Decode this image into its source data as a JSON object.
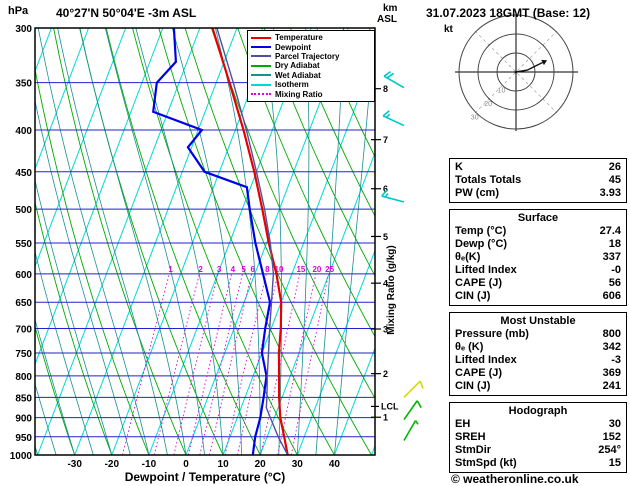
{
  "header": {
    "station": "40°27'N 50°04'E -3m ASL",
    "datetime": "31.07.2023 18GMT (Base: 12)",
    "pressure_unit": "hPa",
    "altitude_unit_top": "km",
    "altitude_unit_bottom": "ASL"
  },
  "legend": [
    {
      "label": "Temperature",
      "color": "#e60000",
      "dash": "solid"
    },
    {
      "label": "Dewpoint",
      "color": "#0000e6",
      "dash": "solid"
    },
    {
      "label": "Parcel Trajectory",
      "color": "#5050a0",
      "dash": "solid"
    },
    {
      "label": "Dry Adiabat",
      "color": "#00aa00",
      "dash": "solid"
    },
    {
      "label": "Wet Adiabat",
      "color": "#1a9090",
      "dash": "solid"
    },
    {
      "label": "Isotherm",
      "color": "#00d8d8",
      "dash": "solid"
    },
    {
      "label": "Mixing Ratio",
      "color": "#dd00dd",
      "dash": "dotted"
    }
  ],
  "axes": {
    "pressure_ticks": [
      300,
      350,
      400,
      450,
      500,
      550,
      600,
      650,
      700,
      750,
      800,
      850,
      900,
      950,
      1000
    ],
    "temp_ticks": [
      -30,
      -20,
      -10,
      0,
      10,
      20,
      30,
      40
    ],
    "xlabel": "Dewpoint / Temperature (°C)",
    "km_ticks": [
      {
        "label": "1",
        "pressure": 899
      },
      {
        "label": "2",
        "pressure": 795
      },
      {
        "label": "3",
        "pressure": 701
      },
      {
        "label": "4",
        "pressure": 616
      },
      {
        "label": "5",
        "pressure": 540
      },
      {
        "label": "6",
        "pressure": 472
      },
      {
        "label": "7",
        "pressure": 411
      },
      {
        "label": "8",
        "pressure": 356
      }
    ],
    "lcl": {
      "label": "LCL",
      "pressure": 872
    },
    "mixing_axis_label": "Mixing Ratio (g/kg)",
    "mixing_values": [
      1,
      2,
      3,
      4,
      5,
      6,
      8,
      10,
      15,
      20,
      25
    ]
  },
  "grid_colors": {
    "isobar": "#2222cc",
    "isotherm": "#00d8d8",
    "dry_adiabat": "#00aa00",
    "wet_adiabat": "#1a9090",
    "mixing_ratio": "#dd00dd"
  },
  "chart_data": {
    "type": "line",
    "title": "Skew-T log-P sounding",
    "xlabel": "Dewpoint / Temperature (°C)",
    "ylabel": "hPa",
    "x_range": [
      -40,
      45
    ],
    "pressure_range": [
      300,
      1000
    ],
    "series": [
      {
        "name": "Temperature",
        "color": "#e60000",
        "width": 2.2,
        "points": [
          [
            1000,
            27.4
          ],
          [
            950,
            24.6
          ],
          [
            900,
            21.6
          ],
          [
            850,
            19.2
          ],
          [
            800,
            17.0
          ],
          [
            750,
            14.6
          ],
          [
            700,
            12.6
          ],
          [
            650,
            10.0
          ],
          [
            600,
            5.8
          ],
          [
            550,
            0.6
          ],
          [
            500,
            -4.6
          ],
          [
            450,
            -10.6
          ],
          [
            400,
            -17.8
          ],
          [
            350,
            -26.4
          ],
          [
            300,
            -36.6
          ]
        ]
      },
      {
        "name": "Dewpoint",
        "color": "#0000e6",
        "width": 2.2,
        "points": [
          [
            1000,
            18
          ],
          [
            950,
            16.8
          ],
          [
            900,
            16.2
          ],
          [
            850,
            15.0
          ],
          [
            800,
            13.6
          ],
          [
            750,
            10.0
          ],
          [
            700,
            8.4
          ],
          [
            650,
            7.0
          ],
          [
            600,
            2.2
          ],
          [
            550,
            -3.0
          ],
          [
            500,
            -8.0
          ],
          [
            470,
            -11.0
          ],
          [
            450,
            -24.0
          ],
          [
            420,
            -31.0
          ],
          [
            400,
            -29.0
          ],
          [
            380,
            -44.0
          ],
          [
            350,
            -46.0
          ],
          [
            330,
            -43.0
          ],
          [
            300,
            -47.0
          ]
        ]
      },
      {
        "name": "Parcel Trajectory",
        "color": "#5050a0",
        "width": 1.4,
        "points": [
          [
            1000,
            27.4
          ],
          [
            950,
            23.0
          ],
          [
            900,
            18.9
          ],
          [
            875,
            16.8
          ],
          [
            850,
            15.9
          ],
          [
            800,
            13.8
          ],
          [
            750,
            11.8
          ],
          [
            700,
            9.6
          ],
          [
            650,
            7.4
          ],
          [
            600,
            5.0
          ],
          [
            550,
            1.0
          ],
          [
            500,
            -4.0
          ],
          [
            450,
            -10.0
          ],
          [
            400,
            -17.0
          ],
          [
            350,
            -25.4
          ],
          [
            300,
            -35.4
          ]
        ]
      }
    ]
  },
  "wind_barbs": [
    {
      "pressure": 355,
      "speed_kt": 20,
      "angle_deg": 300,
      "color": "#00c8c8"
    },
    {
      "pressure": 395,
      "speed_kt": 15,
      "angle_deg": 295,
      "color": "#00c8c8"
    },
    {
      "pressure": 490,
      "speed_kt": 15,
      "angle_deg": 285,
      "color": "#00c8c8"
    },
    {
      "pressure": 850,
      "speed_kt": 10,
      "angle_deg": 45,
      "color": "#d8d800"
    },
    {
      "pressure": 905,
      "speed_kt": 10,
      "angle_deg": 35,
      "color": "#00b400"
    },
    {
      "pressure": 960,
      "speed_kt": 5,
      "angle_deg": 30,
      "color": "#00b400"
    }
  ],
  "hodograph": {
    "unit": "kt",
    "rings_kt": [
      10,
      20,
      30
    ],
    "trace_kt": [
      [
        0,
        0
      ],
      [
        6,
        1
      ],
      [
        10,
        3
      ],
      [
        14,
        5
      ]
    ]
  },
  "panels": {
    "indices": {
      "rows": [
        [
          "K",
          "26"
        ],
        [
          "Totals Totals",
          "45"
        ],
        [
          "PW (cm)",
          "3.93"
        ]
      ]
    },
    "surface": {
      "title": "Surface",
      "rows": [
        [
          "Temp (°C)",
          "27.4"
        ],
        [
          "Dewp (°C)",
          "18"
        ],
        [
          "θₑ(K)",
          "337"
        ],
        [
          "Lifted Index",
          "-0"
        ],
        [
          "CAPE (J)",
          "56"
        ],
        [
          "CIN (J)",
          "606"
        ]
      ]
    },
    "most_unstable": {
      "title": "Most Unstable",
      "rows": [
        [
          "Pressure (mb)",
          "800"
        ],
        [
          "θₑ (K)",
          "342"
        ],
        [
          "Lifted Index",
          "-3"
        ],
        [
          "CAPE (J)",
          "369"
        ],
        [
          "CIN (J)",
          "241"
        ]
      ]
    },
    "hodograph_info": {
      "title": "Hodograph",
      "rows": [
        [
          "EH",
          "30"
        ],
        [
          "SREH",
          "152"
        ],
        [
          "StmDir",
          "254°"
        ],
        [
          "StmSpd (kt)",
          "15"
        ]
      ]
    }
  },
  "copyright": "© weatheronline.co.uk"
}
